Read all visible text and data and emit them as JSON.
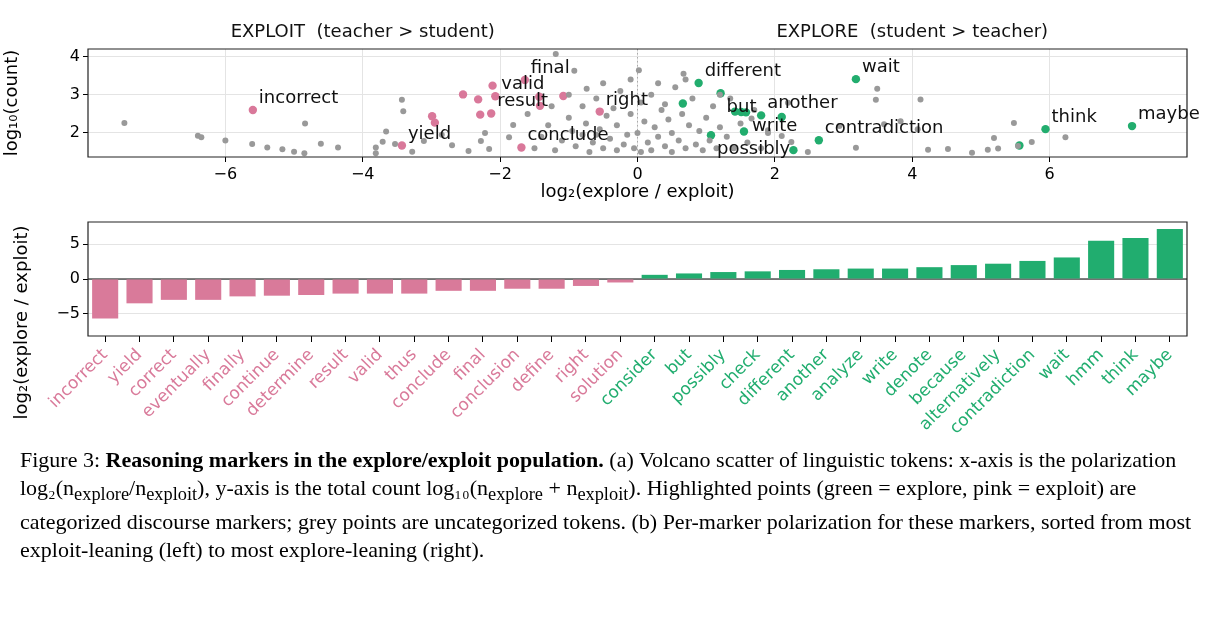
{
  "chart_data": [
    {
      "type": "scatter",
      "xlabel": "log₂(explore / exploit)",
      "ylabel": "log₁₀(count)",
      "xlim": [
        -8,
        8
      ],
      "ylim": [
        1.37,
        4.2
      ],
      "xticks": [
        {
          "value": -6,
          "label": "−6"
        },
        {
          "value": -4,
          "label": "−4"
        },
        {
          "value": -2,
          "label": "−2"
        },
        0,
        2,
        4,
        6
      ],
      "yticks": [
        2,
        3,
        4
      ],
      "grid": true,
      "marker": "circle",
      "ref_lines": [
        {
          "axis": "x",
          "value": 0,
          "color": "#aaaaaa",
          "line_style": "dotted"
        }
      ],
      "series": [
        {
          "color": "#999999",
          "x": [
            -7.47,
            -6.4,
            -6.35,
            -6.0,
            -5.61,
            -5.39,
            -5.17,
            -5.0,
            -4.85,
            -4.84,
            -4.61,
            -4.36,
            -3.81,
            -3.81,
            -3.71,
            -3.66,
            -3.43,
            -3.41,
            -3.53,
            -3.28,
            -3.11,
            -2.85,
            -2.7,
            -2.46,
            -2.28,
            -2.22,
            -2.16,
            -1.87,
            -1.81,
            -1.19,
            -0.92,
            -0.74,
            0.02,
            0.67,
            3.49,
            3.47,
            4.12,
            3.83,
            4.08,
            3.59,
            2.94,
            5.48,
            5.74,
            6.23,
            5.19,
            5.1,
            4.87,
            5.25,
            5.54,
            4.52,
            4.23,
            3.18,
            2.48,
            2.24,
            2.19,
            2.1,
            1.9,
            1.66,
            -1.5,
            -1.4,
            -1.3,
            -1.2,
            -1.1,
            -1.0,
            -0.95,
            -0.9,
            -0.8,
            -0.8,
            -0.75,
            -0.7,
            -0.65,
            -0.6,
            -0.55,
            -0.5,
            -0.45,
            -0.4,
            -0.35,
            -0.3,
            -0.3,
            -0.25,
            -0.2,
            -0.15,
            -0.1,
            -0.1,
            -0.05,
            0.0,
            0.05,
            0.05,
            0.1,
            0.15,
            0.2,
            0.2,
            0.25,
            0.3,
            0.35,
            0.4,
            0.45,
            0.5,
            0.5,
            0.55,
            0.6,
            0.65,
            0.7,
            0.75,
            0.8,
            0.85,
            0.9,
            0.95,
            1.0,
            1.05,
            1.1,
            1.15,
            1.2,
            1.3,
            1.35,
            1.4,
            1.5,
            1.6,
            1.7,
            1.8,
            1.9,
            -1.6,
            -1.25,
            -0.5,
            0.3,
            -1.0,
            0.7,
            -0.6,
            0.4,
            1.2
          ],
          "values": [
            2.26,
            1.93,
            1.89,
            1.8,
            1.71,
            1.62,
            1.57,
            1.51,
            1.47,
            2.25,
            1.72,
            1.62,
            1.62,
            1.47,
            1.77,
            2.04,
            2.87,
            2.57,
            1.71,
            1.51,
            1.79,
            1.95,
            1.68,
            1.53,
            1.79,
            2.0,
            1.58,
            1.89,
            2.21,
            4.07,
            3.63,
            3.16,
            3.64,
            3.55,
            3.16,
            2.87,
            2.88,
            2.31,
            2.1,
            2.23,
            2.18,
            2.26,
            1.76,
            1.89,
            1.87,
            1.56,
            1.48,
            1.59,
            1.66,
            1.58,
            1.56,
            1.61,
            1.5,
            1.76,
            2.79,
            1.92,
            2.07,
            2.38,
            1.6,
            1.9,
            2.2,
            1.55,
            1.8,
            2.4,
            2.05,
            1.65,
            2.7,
            1.95,
            2.25,
            1.5,
            1.75,
            2.9,
            2.1,
            1.6,
            2.45,
            1.85,
            2.65,
            1.55,
            2.2,
            3.1,
            1.7,
            1.95,
            2.5,
            3.4,
            1.6,
            2.0,
            2.8,
            1.5,
            2.3,
            1.75,
            3.0,
            1.55,
            2.15,
            1.9,
            2.6,
            1.65,
            2.35,
            1.5,
            2.0,
            3.2,
            1.8,
            2.5,
            1.6,
            2.2,
            2.9,
            1.7,
            2.05,
            1.55,
            2.4,
            1.8,
            2.7,
            1.6,
            2.15,
            1.9,
            2.9,
            1.6,
            2.25,
            1.75,
            2.6,
            1.6,
            2.0,
            2.5,
            2.7,
            3.3,
            3.3,
            3.0,
            3.4,
            1.95,
            2.75,
            3.0
          ]
        },
        {
          "color": "#d9789a",
          "x": [
            -5.6,
            -2.99,
            -2.95,
            -3.43,
            -2.54,
            -2.32,
            -2.29,
            -2.11,
            -2.07,
            -2.13,
            -1.64,
            -1.43,
            -1.42,
            -1.69,
            -1.08,
            -0.55
          ],
          "values": [
            2.6,
            2.44,
            2.27,
            1.67,
            3.01,
            2.88,
            2.48,
            3.24,
            2.96,
            2.51,
            3.39,
            2.95,
            2.71,
            1.62,
            2.97,
            2.56
          ]
        },
        {
          "color": "#22ad6e",
          "x": [
            0.89,
            0.66,
            1.21,
            1.42,
            1.51,
            1.58,
            1.8,
            2.1,
            1.55,
            1.07,
            2.27,
            2.64,
            3.18,
            5.94,
            5.56,
            7.2
          ],
          "values": [
            3.31,
            2.77,
            3.04,
            2.56,
            2.55,
            2.54,
            2.46,
            2.42,
            2.04,
            1.94,
            1.55,
            1.81,
            3.41,
            2.1,
            1.67,
            2.18
          ]
        }
      ],
      "annotations": [
        "EXPLOIT  (teacher > student)",
        "EXPLORE  (student > teacher)",
        {
          "text": "incorrect",
          "x": -5.6,
          "y": 2.6
        },
        {
          "text": "yield",
          "x": -3.43,
          "y": 1.67
        },
        {
          "text": "valid",
          "x": -2.07,
          "y": 2.96
        },
        {
          "text": "result",
          "x": -2.13,
          "y": 2.51
        },
        {
          "text": "final",
          "x": -1.64,
          "y": 3.39
        },
        {
          "text": "right",
          "x": -0.55,
          "y": 2.56
        },
        {
          "text": "conclude",
          "x": -1.69,
          "y": 1.62
        },
        {
          "text": "different",
          "x": 0.89,
          "y": 3.31
        },
        {
          "text": "but",
          "x": 1.21,
          "y": 3.04
        },
        {
          "text": "write",
          "x": 1.58,
          "y": 2.54
        },
        {
          "text": "wait",
          "x": 3.18,
          "y": 3.41
        },
        {
          "text": "another",
          "x": 1.8,
          "y": 2.46
        },
        {
          "text": "possibly",
          "x": 1.07,
          "y": 1.94
        },
        {
          "text": "contradiction",
          "x": 2.64,
          "y": 1.81
        },
        {
          "text": "think",
          "x": 5.94,
          "y": 2.1
        },
        {
          "text": "maybe",
          "x": 7.2,
          "y": 2.18
        }
      ]
    },
    {
      "type": "bar",
      "ylabel": "log₂(explore / exploit)",
      "ylim": [
        -8.2,
        8.2
      ],
      "yticks": [
        {
          "value": -5,
          "label": "−5"
        },
        0,
        5
      ],
      "grid": "y",
      "ref_lines": [
        {
          "axis": "y",
          "value": 0,
          "color": "#000000",
          "line_style": "solid"
        }
      ],
      "categories": [
        "incorrect",
        "yield",
        "correct",
        "eventually",
        "finally",
        "continue",
        "determine",
        "result",
        "valid",
        "thus",
        "conclude",
        "final",
        "conclusion",
        "define",
        "right",
        "solution",
        "consider",
        "but",
        "possibly",
        "check",
        "different",
        "another",
        "analyze",
        "write",
        "denote",
        "because",
        "alternatively",
        "contradiction",
        "wait",
        "hmm",
        "think",
        "maybe"
      ],
      "values": [
        -5.7,
        -3.5,
        -3.0,
        -3.0,
        -2.5,
        -2.4,
        -2.3,
        -2.1,
        -2.1,
        -2.1,
        -1.7,
        -1.7,
        -1.4,
        -1.4,
        -1.0,
        -0.5,
        0.6,
        0.8,
        1.0,
        1.1,
        1.3,
        1.4,
        1.5,
        1.5,
        1.7,
        2.0,
        2.2,
        2.6,
        3.1,
        5.5,
        5.9,
        7.2
      ],
      "colors": [
        "#d97a9a",
        "#d97a9a",
        "#d97a9a",
        "#d97a9a",
        "#d97a9a",
        "#d97a9a",
        "#d97a9a",
        "#d97a9a",
        "#d97a9a",
        "#d97a9a",
        "#d97a9a",
        "#d97a9a",
        "#d97a9a",
        "#d97a9a",
        "#d97a9a",
        "#d97a9a",
        "#21ad6f",
        "#21ad6f",
        "#21ad6f",
        "#21ad6f",
        "#21ad6f",
        "#21ad6f",
        "#21ad6f",
        "#21ad6f",
        "#21ad6f",
        "#21ad6f",
        "#21ad6f",
        "#21ad6f",
        "#21ad6f",
        "#21ad6f",
        "#21ad6f",
        "#21ad6f"
      ],
      "annotations": [
        "Figure 3:",
        "Reasoning markers in the explore/exploit population.",
        "(a) Volcano scatter of linguistic tokens: x-axis is the polarization log₂(n$_{explore}$/n$_{exploit}$), y-axis is the total count log₁₀(n$_{explore}$ + n$_{exploit}$). Highlighted points (green = explore, pink = exploit) are categorized discourse markers; grey points are uncategorized tokens. (b) Per-marker polarization for these markers, sorted from most exploit-leaning (left) to most explore-leaning (right)."
      ]
    }
  ]
}
